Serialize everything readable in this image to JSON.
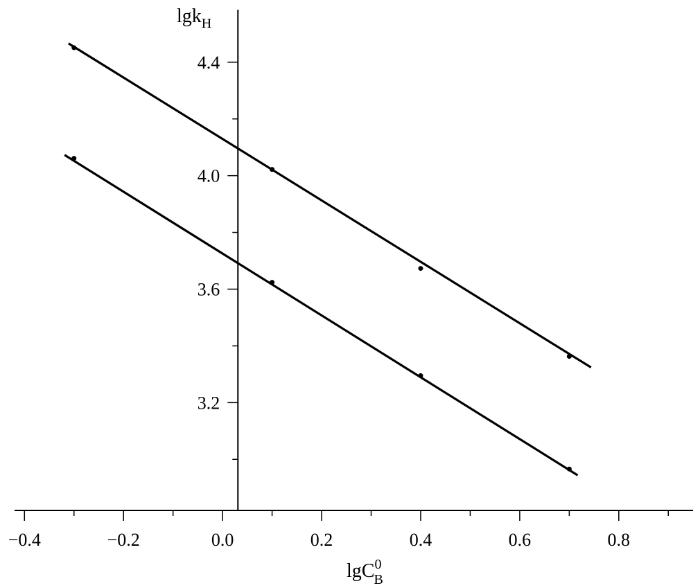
{
  "chart_data": {
    "type": "scatter",
    "title": "",
    "xlabel": {
      "base": "lgC",
      "sup": "0",
      "sub": "B"
    },
    "ylabel": {
      "base": "lgk",
      "sub": "H"
    },
    "xlim": [
      -0.42,
      0.95
    ],
    "ylim": [
      2.82,
      4.585
    ],
    "y_axis_at_x": 0.031,
    "x_ticks": [
      -0.4,
      -0.2,
      0.0,
      0.2,
      0.4,
      0.6,
      0.8
    ],
    "x_tick_labels": [
      "−0.4",
      "−0.2",
      "0.0",
      "0.2",
      "0.4",
      "0.6",
      "0.8"
    ],
    "x_minor_ticks": [
      -0.3,
      -0.1,
      0.1,
      0.3,
      0.5,
      0.7,
      0.9
    ],
    "y_ticks": [
      3.2,
      3.6,
      4.0,
      4.4
    ],
    "y_tick_labels": [
      "3.2",
      "3.6",
      "4.0",
      "4.4"
    ],
    "y_minor_ticks": [
      3.0,
      3.4,
      3.8,
      4.2
    ],
    "grid": false,
    "series": [
      {
        "points": {
          "x": [
            -0.3,
            0.1,
            0.4,
            0.7
          ],
          "y": [
            4.451,
            4.022,
            3.673,
            3.363
          ]
        },
        "fit_line": {
          "x": [
            -0.311,
            0.744
          ],
          "y": [
            4.466,
            3.324
          ]
        }
      },
      {
        "points": {
          "x": [
            -0.3,
            0.1,
            0.4,
            0.7
          ],
          "y": [
            4.061,
            3.624,
            3.295,
            2.966
          ]
        },
        "fit_line": {
          "x": [
            -0.319,
            0.717
          ],
          "y": [
            4.073,
            2.944
          ]
        }
      }
    ],
    "colors": {
      "line": "#000000",
      "marker": "#000000"
    }
  }
}
